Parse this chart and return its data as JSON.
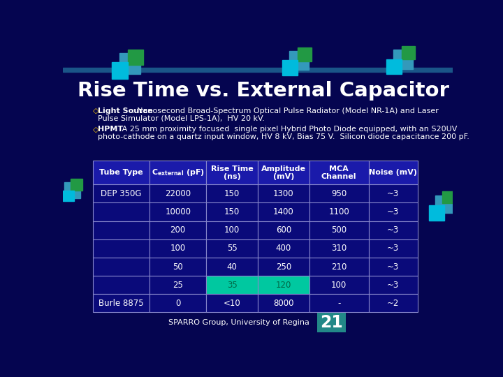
{
  "title": "Rise Time vs. External Capacitor",
  "bg_color": "#050550",
  "light_source_line1_bold": "Light Source",
  "light_source_line1_rest": ": Nanosecond Broad-Spectrum Optical Pulse Radiator (Model NR-1A) and Laser",
  "light_source_line2": "Pulse Simulator (Model LPS-1A),  HV 20 kV.",
  "hpmt_line1_bold": "HPMT",
  "hpmt_line1_rest": ":  A 25 mm proximity focused  single pixel Hybrid Photo Diode equipped, with an S20UV",
  "hpmt_line2": "photo-cathode on a quartz input window, HV 8 kV, Bias 75 V.  Silicon diode capacitance 200 pF.",
  "table_data": [
    [
      "DEP 350G",
      "22000",
      "150",
      "1300",
      "950",
      "~3"
    ],
    [
      "",
      "10000",
      "150",
      "1400",
      "1100",
      "~3"
    ],
    [
      "",
      "200",
      "100",
      "600",
      "500",
      "~3"
    ],
    [
      "",
      "100",
      "55",
      "400",
      "310",
      "~3"
    ],
    [
      "",
      "50",
      "40",
      "250",
      "210",
      "~3"
    ],
    [
      "",
      "25",
      "35",
      "120",
      "100",
      "~3"
    ],
    [
      "Burle 8875",
      "0",
      "<10",
      "8000",
      "-",
      "~2"
    ]
  ],
  "highlight_row": 5,
  "highlight_cols": [
    2,
    3
  ],
  "highlight_color": "#00c8a0",
  "highlight_text_color": "#006644",
  "table_header_bg": "#1a1aaa",
  "table_header_text": "#ffffff",
  "table_row_bg": "#0a0a7a",
  "table_border_color": "#8888cc",
  "table_text_color": "#ffffff",
  "footer_text": "SPARRO Group, University of Regina",
  "page_number": "21",
  "page_num_bg": "#228888",
  "diamond_color": "#ffcc00",
  "deco_teal_large": "#3399bb",
  "deco_green": "#229944",
  "deco_cyan": "#00bbdd",
  "deco_teal_medium": "#007799",
  "deco_blue_stripe": "#1a5588"
}
